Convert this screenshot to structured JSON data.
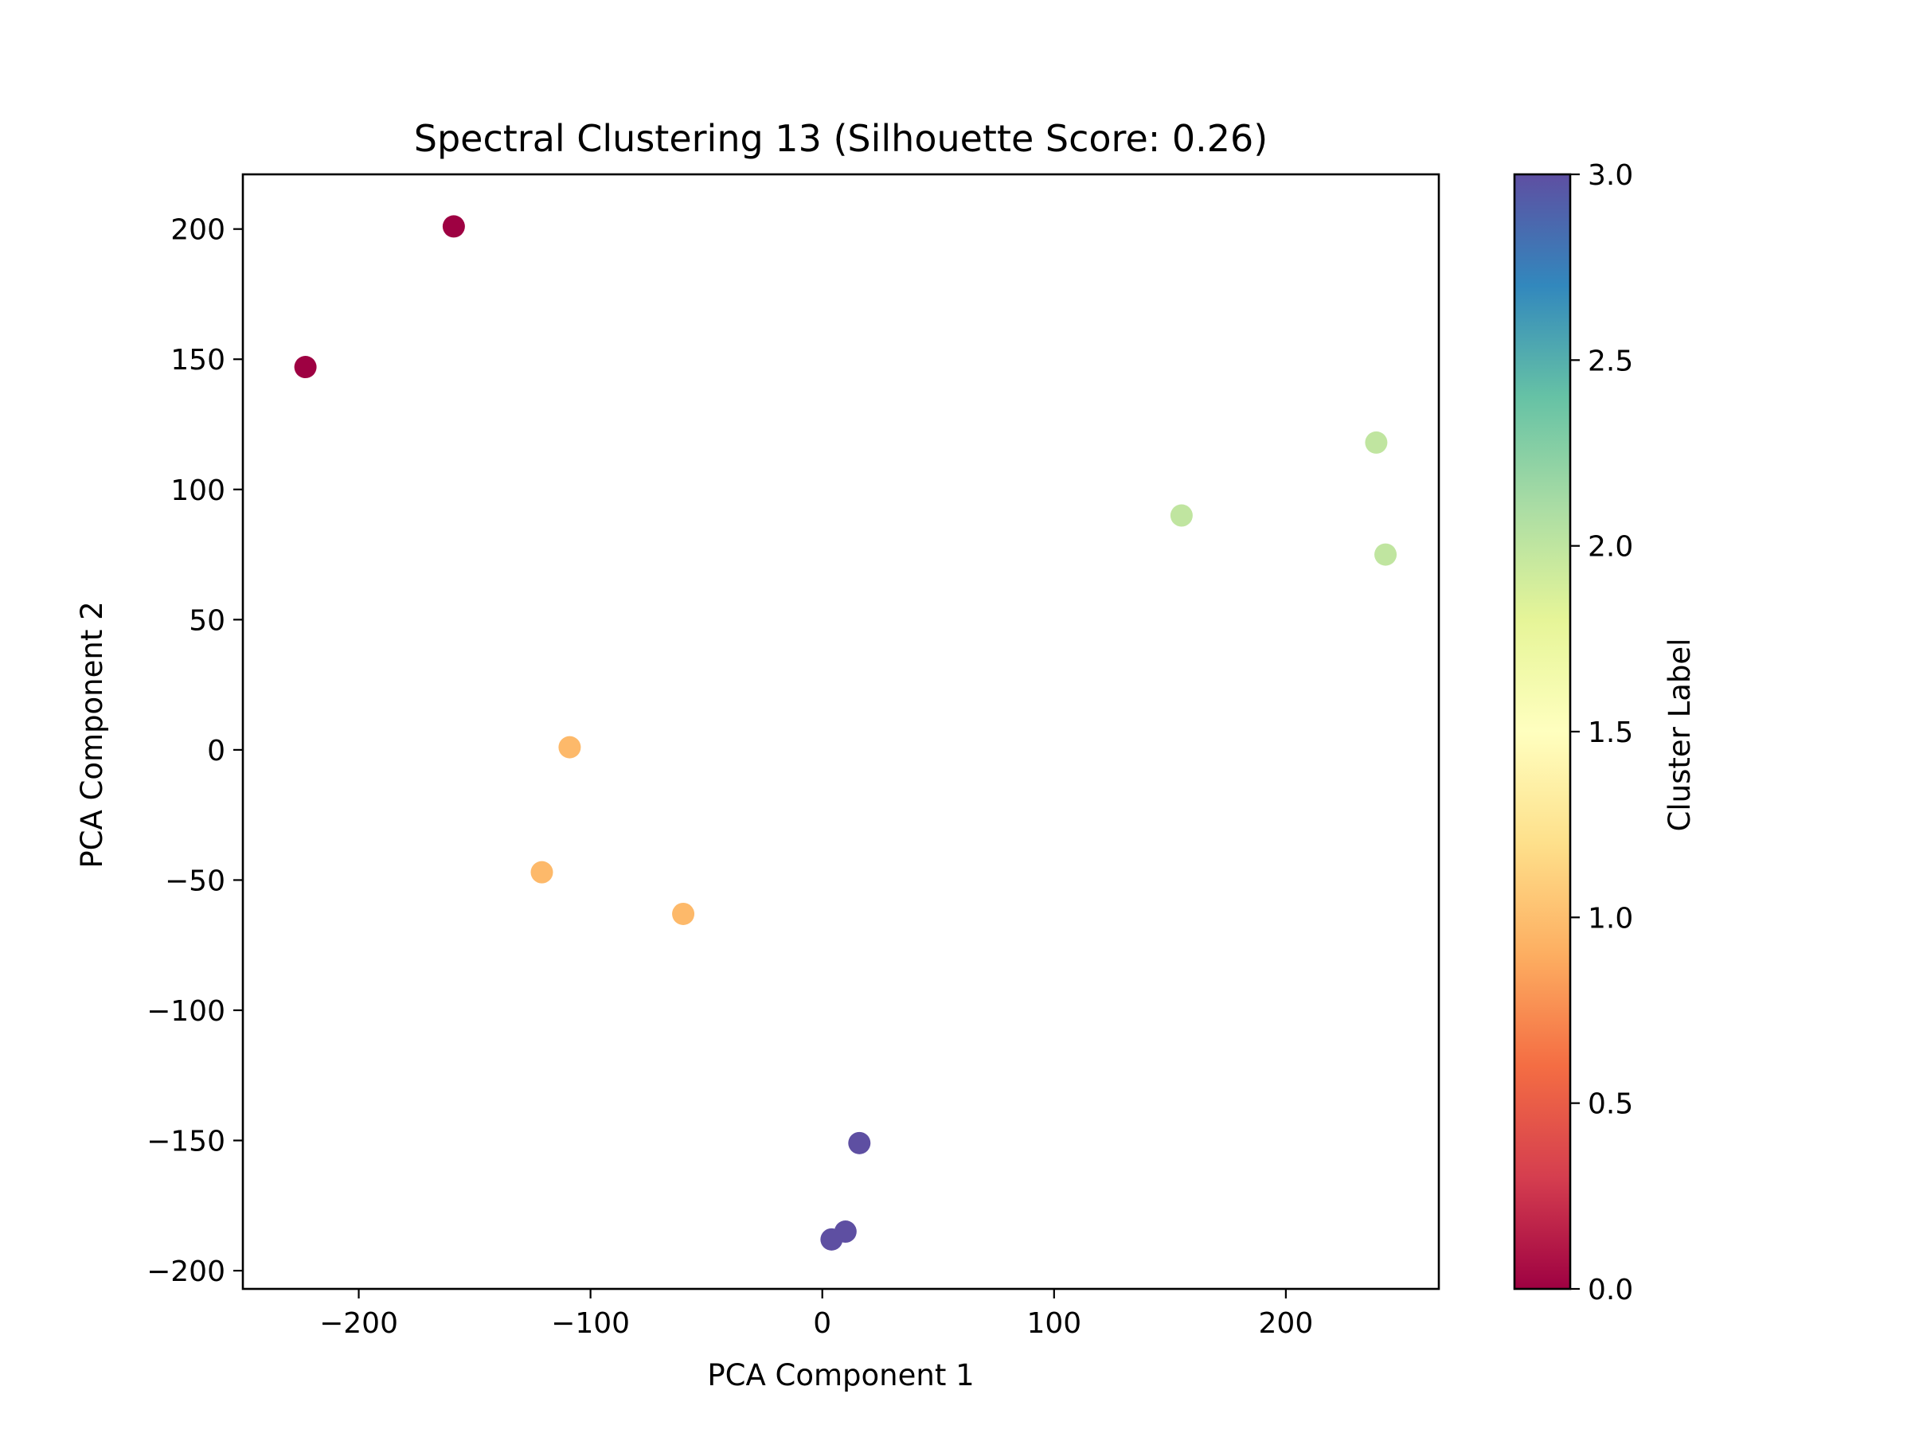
{
  "chart_data": {
    "type": "scatter",
    "title": "Spectral Clustering 13 (Silhouette Score: 0.26)",
    "xlabel": "PCA Component 1",
    "ylabel": "PCA Component 2",
    "xlim": [
      -250,
      266
    ],
    "ylim": [
      -207,
      221
    ],
    "xticks": [
      -200,
      -100,
      0,
      100,
      200
    ],
    "yticks": [
      -200,
      -150,
      -100,
      -50,
      0,
      50,
      100,
      150,
      200
    ],
    "grid": false,
    "points": [
      {
        "x": -159,
        "y": 201,
        "cluster": 0
      },
      {
        "x": -223,
        "y": 147,
        "cluster": 0
      },
      {
        "x": -109,
        "y": 1,
        "cluster": 1
      },
      {
        "x": -121,
        "y": -47,
        "cluster": 1
      },
      {
        "x": -60,
        "y": -63,
        "cluster": 1
      },
      {
        "x": 239,
        "y": 118,
        "cluster": 2
      },
      {
        "x": 155,
        "y": 90,
        "cluster": 2
      },
      {
        "x": 243,
        "y": 75,
        "cluster": 2
      },
      {
        "x": 16,
        "y": -151,
        "cluster": 3
      },
      {
        "x": 10,
        "y": -185,
        "cluster": 3
      },
      {
        "x": 4,
        "y": -188,
        "cluster": 3
      }
    ],
    "colorbar": {
      "label": "Cluster Label",
      "range": [
        0.0,
        3.0
      ],
      "ticks": [
        "0.0",
        "0.5",
        "1.0",
        "1.5",
        "2.0",
        "2.5",
        "3.0"
      ],
      "colormap": "Spectral",
      "stops": [
        "#9e0142",
        "#d53e4f",
        "#f46d43",
        "#fdae61",
        "#fee08b",
        "#ffffbf",
        "#e6f598",
        "#abdda4",
        "#66c2a5",
        "#3288bd",
        "#5e4fa2"
      ]
    },
    "cluster_colors": [
      "#9e0142",
      "#fdb96a",
      "#c0e5a0",
      "#5e4fa2"
    ]
  }
}
